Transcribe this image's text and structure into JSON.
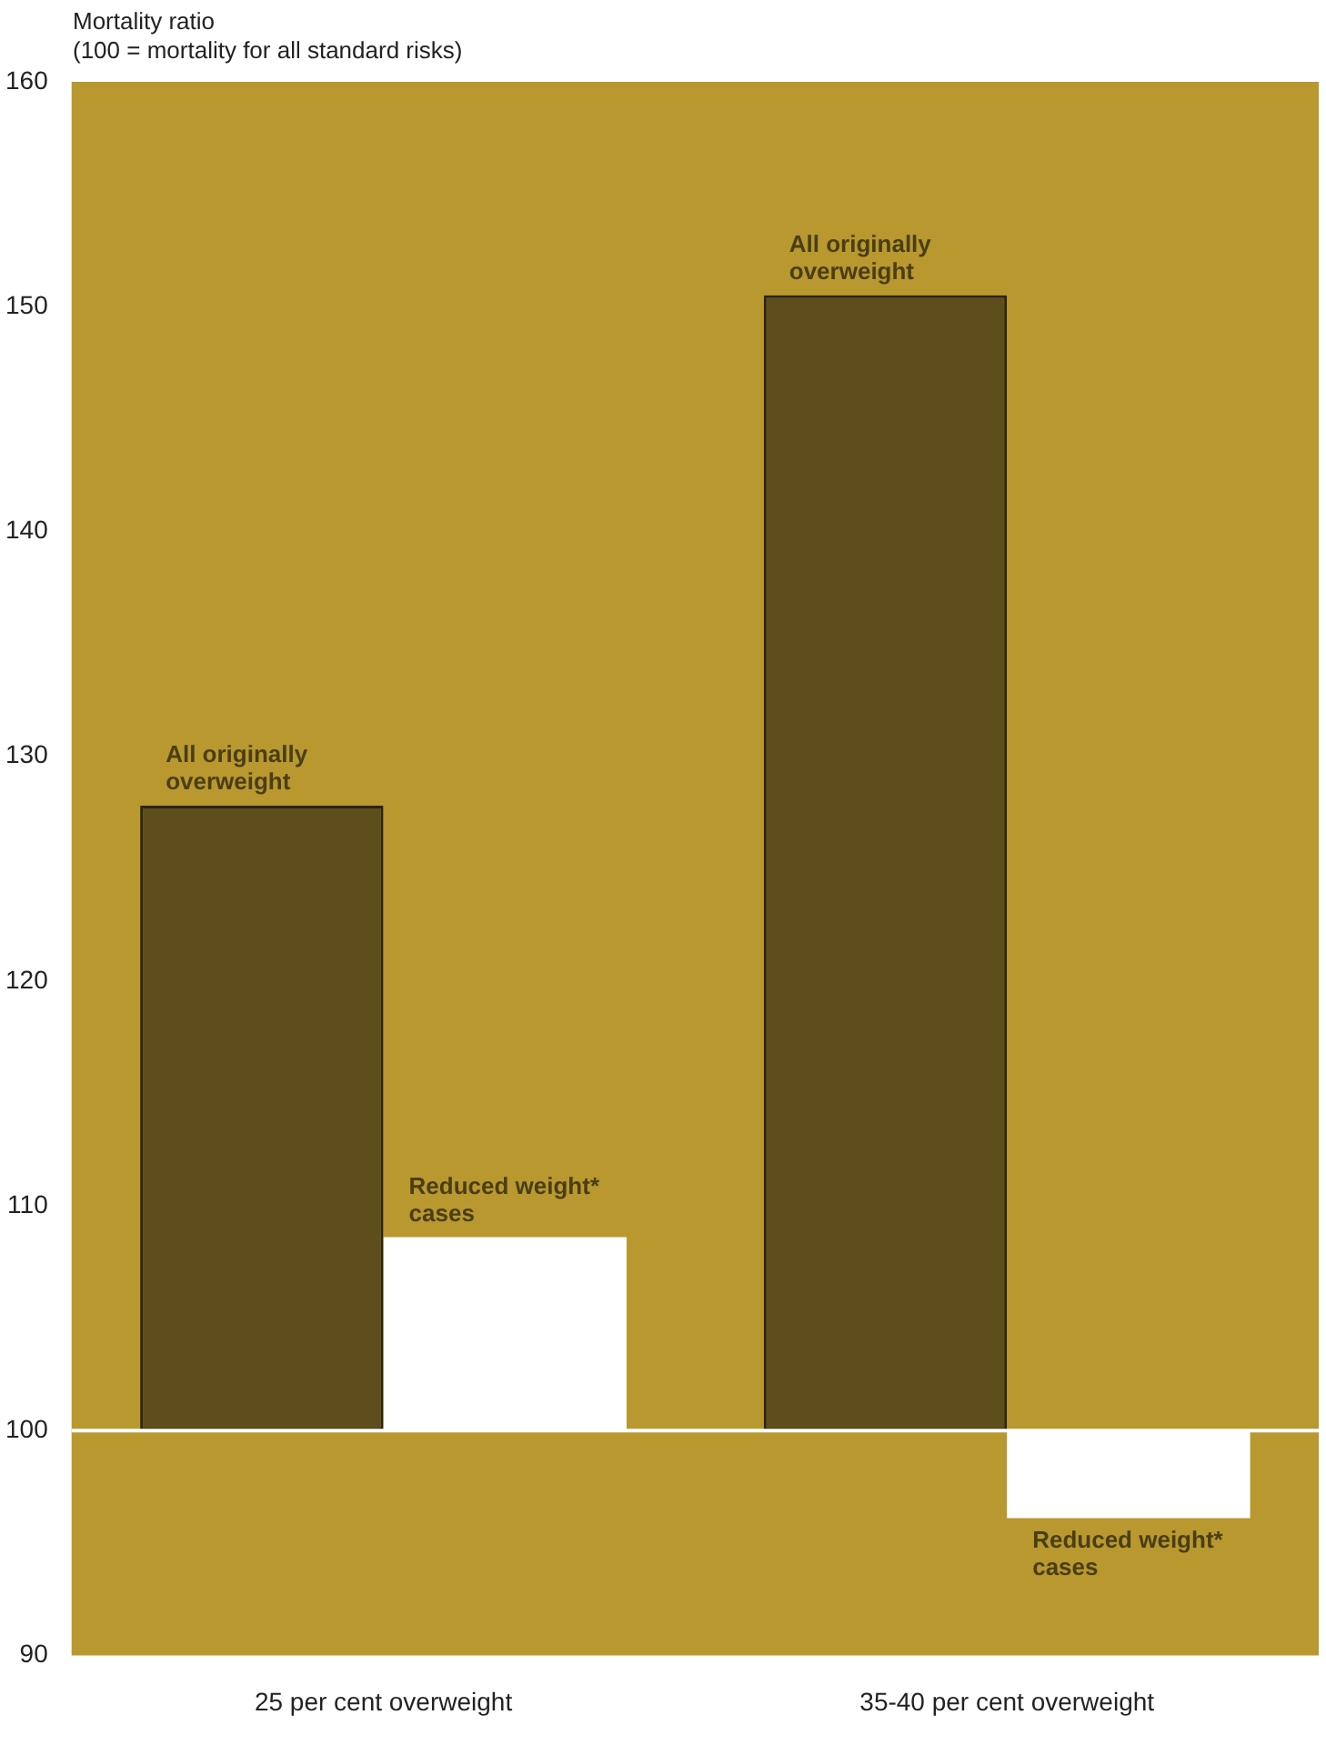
{
  "chart_data": {
    "type": "bar",
    "ylabel": "Mortality ratio\n(100 = mortality for all standard risks)",
    "categories": [
      "25 per cent overweight",
      "35-40 per cent overweight"
    ],
    "series": [
      {
        "name": "All originally overweight",
        "color": "#5e4e1c",
        "base": [
          100,
          100
        ],
        "values": [
          27.8,
          50.5
        ]
      },
      {
        "name": "Reduced weight* cases",
        "color": "#ffffff",
        "base": [
          100,
          100
        ],
        "values": [
          8.6,
          -3.9
        ]
      }
    ],
    "ylim": [
      90,
      160
    ],
    "yticks": [
      90,
      100,
      110,
      120,
      130,
      140,
      150,
      160
    ],
    "ref_lines": [
      {
        "axis": "y",
        "value": 100,
        "color": "#ffffff"
      }
    ]
  }
}
